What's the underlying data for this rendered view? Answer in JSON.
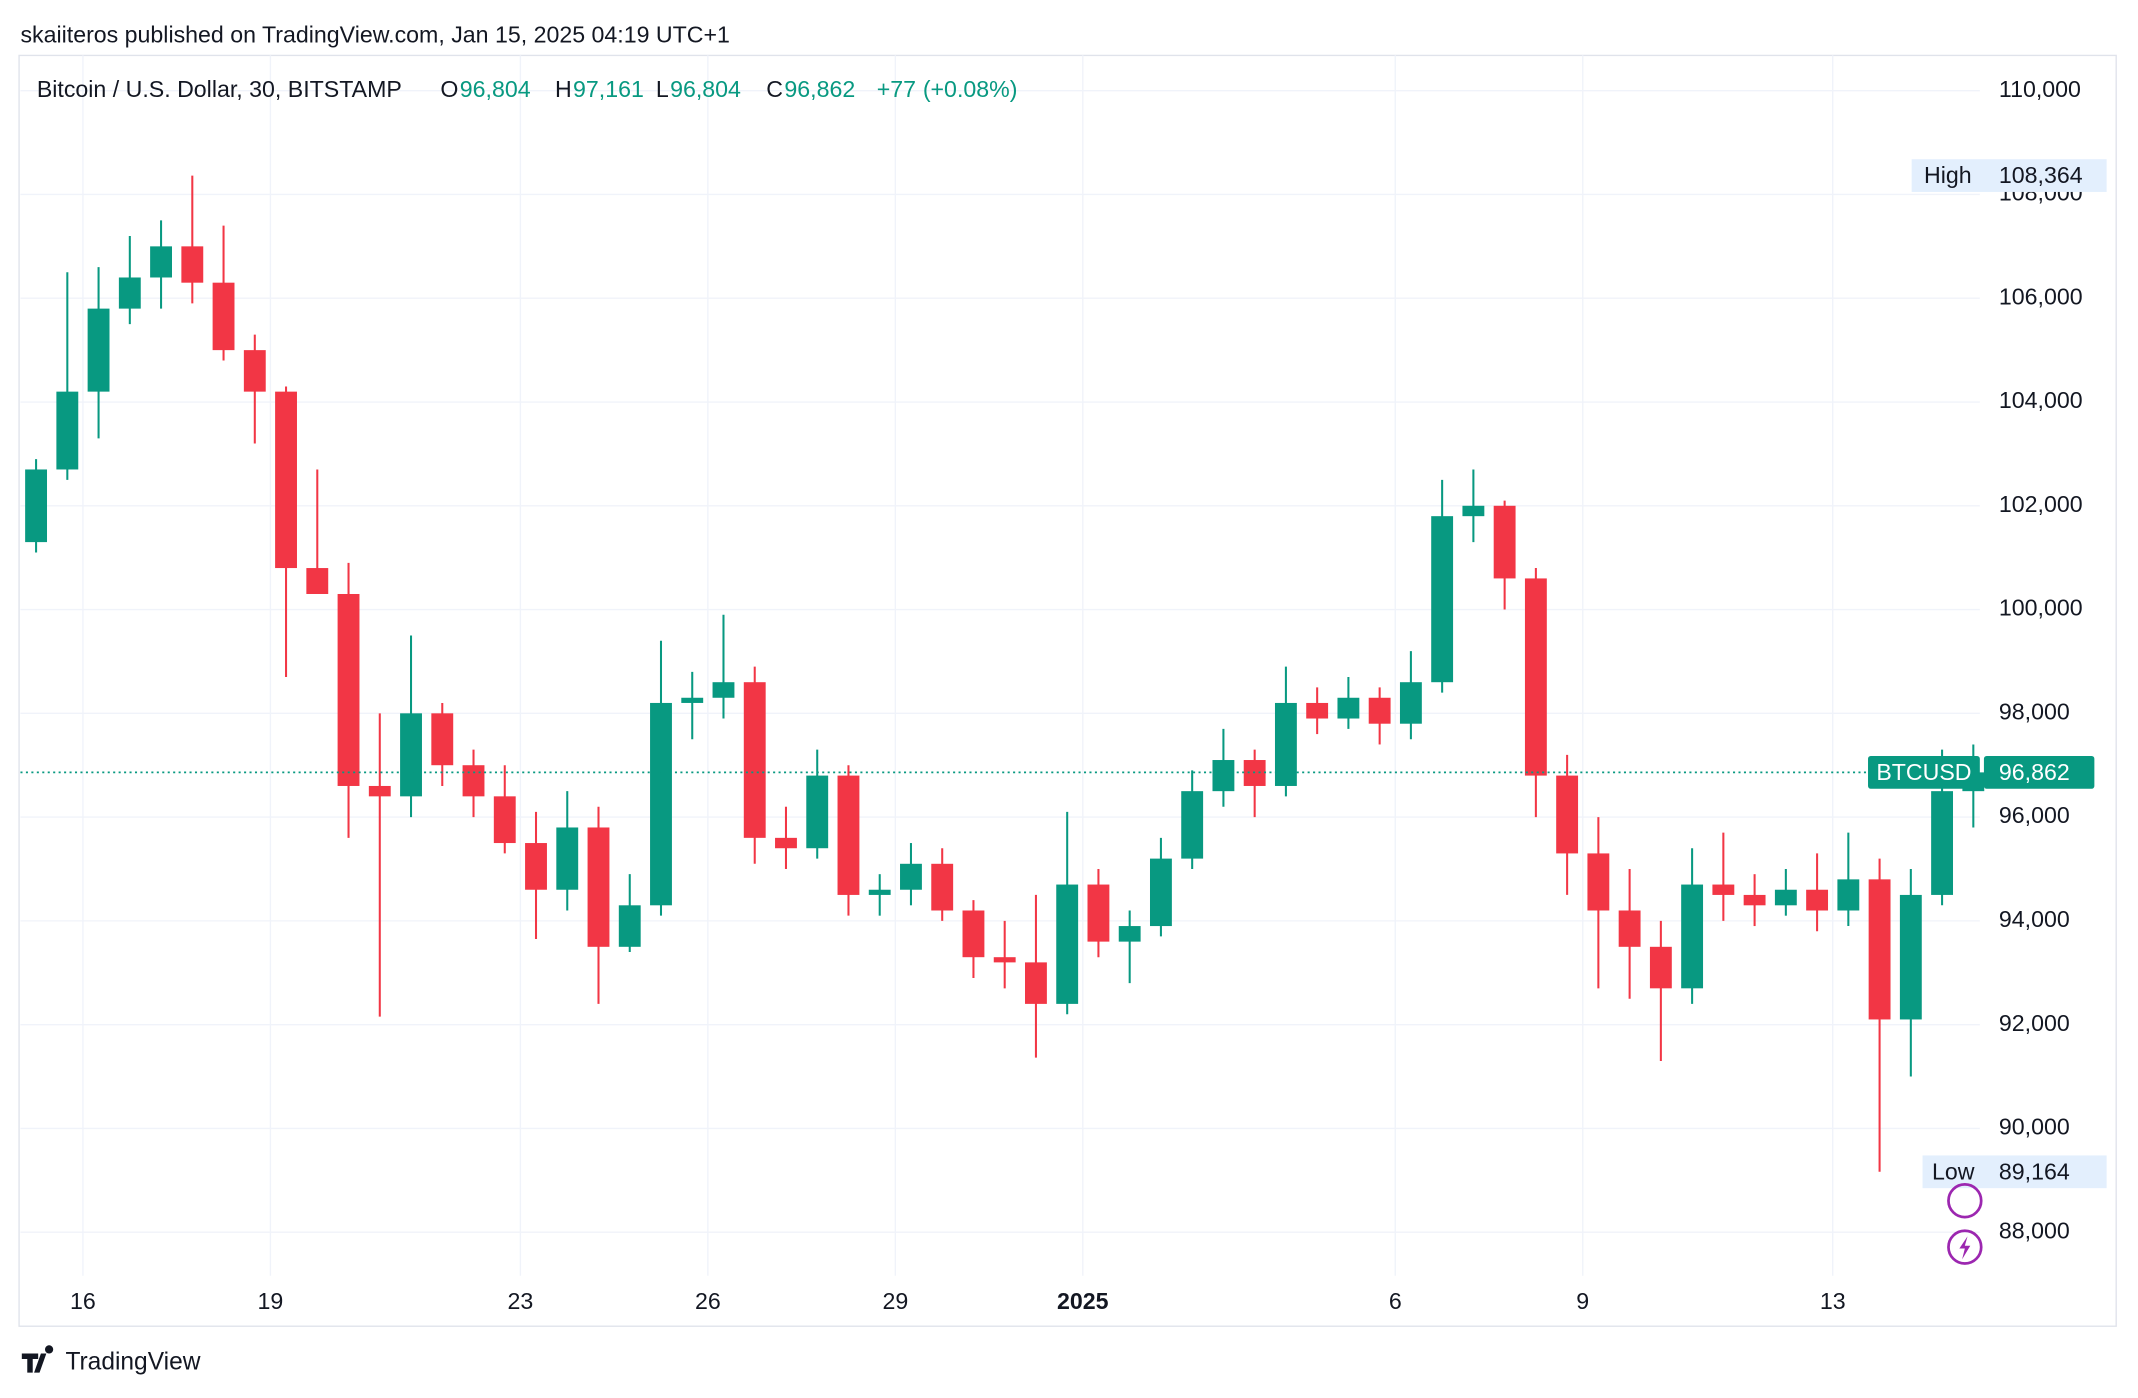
{
  "chart_data": {
    "type": "candlestick",
    "attribution": "skaiiteros published on TradingView.com, Jan 15, 2025 04:19 UTC+1",
    "title": "Bitcoin / U.S. Dollar, 30, BITSTAMP",
    "ohlc_legend": [
      {
        "key": "O",
        "value": 96804,
        "label": "96,804"
      },
      {
        "key": "H",
        "value": 97161,
        "label": "97,161"
      },
      {
        "key": "L",
        "value": 96804,
        "label": "96,804"
      },
      {
        "key": "C",
        "value": 96862,
        "label": "96,862"
      }
    ],
    "change": {
      "value": 77,
      "label": "+77"
    },
    "change_percent": {
      "value": 0.08,
      "label": "(+0.08%)"
    },
    "brand": "TradingView",
    "up_color": "#089981",
    "down_color": "#f23645",
    "grid": true,
    "xlim": [
      "2024-12-15T00:00",
      "2025-01-15T08:30"
    ],
    "xticks": [
      {
        "value": "2024-12-16T00:00",
        "label": "16"
      },
      {
        "value": "2024-12-19T00:00",
        "label": "19"
      },
      {
        "value": "2024-12-23T00:00",
        "label": "23"
      },
      {
        "value": "2024-12-26T00:00",
        "label": "26"
      },
      {
        "value": "2024-12-29T00:00",
        "label": "29"
      },
      {
        "value": "2025-01-01T00:00",
        "label": "2025"
      },
      {
        "value": "2025-01-06T00:00",
        "label": "6"
      },
      {
        "value": "2025-01-09T00:00",
        "label": "9"
      },
      {
        "value": "2025-01-13T00:00",
        "label": "13"
      }
    ],
    "ylim": [
      87160,
      110680
    ],
    "yticks": [
      {
        "value": 88000,
        "label": "88,000"
      },
      {
        "value": 90000,
        "label": "90,000"
      },
      {
        "value": 92000,
        "label": "92,000"
      },
      {
        "value": 94000,
        "label": "94,000"
      },
      {
        "value": 96000,
        "label": "96,000"
      },
      {
        "value": 98000,
        "label": "98,000"
      },
      {
        "value": 100000,
        "label": "100,000"
      },
      {
        "value": 102000,
        "label": "102,000"
      },
      {
        "value": 104000,
        "label": "104,000"
      },
      {
        "value": 106000,
        "label": "106,000"
      },
      {
        "value": 108000,
        "label": "108,000"
      },
      {
        "value": 110000,
        "label": "110,000"
      }
    ],
    "high_marker": {
      "label": "High",
      "value": 108364,
      "value_label": "108,364"
    },
    "low_marker": {
      "label": "Low",
      "value": 89164,
      "value_label": "89,164"
    },
    "last_price": {
      "label": "BTCUSD",
      "value": 96862,
      "value_label": "96,862",
      "color": "#089981"
    },
    "x": [
      "2024-12-15T00:00",
      "2024-12-15T12:00",
      "2024-12-16T00:00",
      "2024-12-16T12:00",
      "2024-12-17T00:00",
      "2024-12-17T12:00",
      "2024-12-18T00:00",
      "2024-12-18T12:00",
      "2024-12-19T00:00",
      "2024-12-19T12:00",
      "2024-12-20T00:00",
      "2024-12-20T12:00",
      "2024-12-21T00:00",
      "2024-12-21T12:00",
      "2024-12-22T00:00",
      "2024-12-22T12:00",
      "2024-12-23T00:00",
      "2024-12-23T12:00",
      "2024-12-24T00:00",
      "2024-12-24T12:00",
      "2024-12-25T00:00",
      "2024-12-25T12:00",
      "2024-12-26T00:00",
      "2024-12-26T12:00",
      "2024-12-27T00:00",
      "2024-12-27T12:00",
      "2024-12-28T00:00",
      "2024-12-28T12:00",
      "2024-12-29T00:00",
      "2024-12-29T12:00",
      "2024-12-30T00:00",
      "2024-12-30T12:00",
      "2024-12-31T00:00",
      "2024-12-31T12:00",
      "2025-01-01T00:00",
      "2025-01-01T12:00",
      "2025-01-02T00:00",
      "2025-01-02T12:00",
      "2025-01-03T00:00",
      "2025-01-03T12:00",
      "2025-01-04T00:00",
      "2025-01-04T12:00",
      "2025-01-05T00:00",
      "2025-01-05T12:00",
      "2025-01-06T00:00",
      "2025-01-06T12:00",
      "2025-01-07T00:00",
      "2025-01-07T12:00",
      "2025-01-08T00:00",
      "2025-01-08T12:00",
      "2025-01-09T00:00",
      "2025-01-09T12:00",
      "2025-01-10T00:00",
      "2025-01-10T12:00",
      "2025-01-11T00:00",
      "2025-01-11T12:00",
      "2025-01-12T00:00",
      "2025-01-12T12:00",
      "2025-01-13T00:00",
      "2025-01-13T12:00",
      "2025-01-14T00:00",
      "2025-01-14T12:00",
      "2025-01-15T00:00"
    ],
    "open": [
      101300,
      102700,
      104200,
      105800,
      106400,
      107000,
      106300,
      105000,
      104200,
      100800,
      100300,
      96600,
      96400,
      98000,
      97000,
      96400,
      95500,
      94600,
      95800,
      93500,
      94300,
      98200,
      98300,
      98600,
      95600,
      95400,
      96800,
      94500,
      94600,
      95100,
      94200,
      93300,
      93200,
      92400,
      94700,
      93600,
      93900,
      95200,
      96500,
      97100,
      96600,
      98200,
      97900,
      98300,
      97800,
      98600,
      101800,
      102000,
      100600,
      96800,
      95300,
      94200,
      93500,
      92700,
      94700,
      94500,
      94300,
      94600,
      94200,
      94800,
      92100,
      94500,
      96500
    ],
    "high": [
      102900,
      106500,
      106600,
      107200,
      107500,
      108364,
      107400,
      105300,
      104300,
      102700,
      100900,
      98000,
      99500,
      98200,
      97300,
      97000,
      96100,
      96500,
      96200,
      94900,
      99400,
      98800,
      99900,
      98900,
      96200,
      97300,
      97000,
      94900,
      95500,
      95400,
      94400,
      94000,
      94500,
      96100,
      95000,
      94200,
      95600,
      96900,
      97700,
      97300,
      98900,
      98500,
      98700,
      98500,
      99200,
      102500,
      102700,
      102100,
      100800,
      97200,
      96000,
      95000,
      94000,
      95400,
      95700,
      94900,
      95000,
      95300,
      95700,
      95200,
      95000,
      97300,
      97400
    ],
    "low": [
      101100,
      102500,
      103300,
      105500,
      105800,
      105900,
      104800,
      103200,
      98700,
      100400,
      95600,
      92155,
      96000,
      96600,
      96000,
      95300,
      93650,
      94200,
      92400,
      93400,
      94100,
      97500,
      97900,
      95100,
      95000,
      95200,
      94100,
      94100,
      94300,
      94000,
      92900,
      92700,
      91365,
      92200,
      93300,
      92800,
      93700,
      95000,
      96200,
      96000,
      96400,
      97600,
      97700,
      97400,
      97500,
      98400,
      101300,
      100000,
      96000,
      94500,
      92700,
      92500,
      91300,
      92400,
      94000,
      93900,
      94100,
      93800,
      93900,
      89164,
      91000,
      94300,
      95800
    ],
    "close": [
      102700,
      104200,
      105800,
      106400,
      107000,
      106300,
      105000,
      104200,
      100800,
      100300,
      96600,
      96400,
      98000,
      97000,
      96400,
      95500,
      94600,
      95800,
      93500,
      94300,
      98200,
      98300,
      98600,
      95600,
      95400,
      96800,
      94500,
      94600,
      95100,
      94200,
      93300,
      93200,
      92400,
      94700,
      93600,
      93900,
      95200,
      96500,
      97100,
      96600,
      98200,
      97900,
      98300,
      97800,
      98600,
      101800,
      102000,
      100600,
      96800,
      95300,
      94200,
      93500,
      92700,
      94700,
      94500,
      94300,
      94600,
      94200,
      94800,
      92100,
      94500,
      96500,
      96862
    ]
  }
}
